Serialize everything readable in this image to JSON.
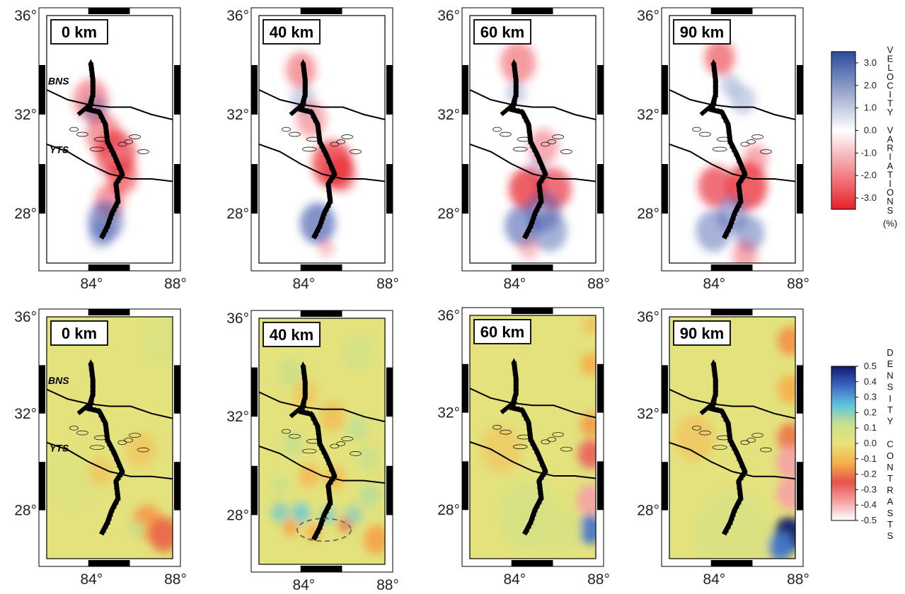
{
  "chart_data": {
    "type": "heatmap",
    "panel_grid": "2 rows x 4 columns of map panels",
    "lon_range": [
      82,
      88
    ],
    "lat_range": [
      26,
      36
    ],
    "xticks": [
      "84°",
      "88°"
    ],
    "yticks": [
      "36°",
      "32°",
      "28°"
    ],
    "fault_labels": [
      "BNS",
      "YTS"
    ],
    "rows": [
      {
        "quantity": "velocity",
        "depths": [
          "0 km",
          "40 km",
          "60 km",
          "90 km"
        ],
        "colorbar": {
          "title_letters": [
            "V",
            "E",
            "L",
            "O",
            "C",
            "I",
            "T",
            "Y",
            " ",
            "V",
            "A",
            "R",
            "I",
            "A",
            "T",
            "I",
            "O",
            "N",
            "S"
          ],
          "unit": "(%)",
          "ticks": [
            "3.0",
            "2.0",
            "1.0",
            "0.0",
            "-1.0",
            "-2.0",
            "-3.0"
          ],
          "range": [
            -3.5,
            3.5
          ],
          "colors": [
            "#2b4a9a",
            "#ffffff",
            "#e8202a"
          ]
        },
        "anomalies": [
          [
            {
              "lon": 84.1,
              "lat": 32.6,
              "sign": "neg",
              "strength": 0.5,
              "r": 0.7
            },
            {
              "lon": 84.3,
              "lat": 32.2,
              "sign": "pos",
              "strength": 0.4,
              "r": 0.5
            },
            {
              "lon": 84.7,
              "lat": 31.2,
              "sign": "neg",
              "strength": 0.5,
              "r": 0.7
            },
            {
              "lon": 85.3,
              "lat": 30.4,
              "sign": "neg",
              "strength": 0.7,
              "r": 0.8
            },
            {
              "lon": 85.6,
              "lat": 29.5,
              "sign": "neg",
              "strength": 0.6,
              "r": 0.6
            },
            {
              "lon": 85.0,
              "lat": 28.5,
              "sign": "neg",
              "strength": 0.5,
              "r": 0.6
            },
            {
              "lon": 84.8,
              "lat": 27.7,
              "sign": "pos",
              "strength": 0.6,
              "r": 0.7
            },
            {
              "lon": 84.6,
              "lat": 27.2,
              "sign": "pos",
              "strength": 0.4,
              "r": 0.5
            }
          ],
          [
            {
              "lon": 84.0,
              "lat": 33.8,
              "sign": "neg",
              "strength": 0.5,
              "r": 0.6
            },
            {
              "lon": 84.1,
              "lat": 32.6,
              "sign": "pos",
              "strength": 0.3,
              "r": 0.5
            },
            {
              "lon": 84.5,
              "lat": 31.8,
              "sign": "neg",
              "strength": 0.4,
              "r": 0.6
            },
            {
              "lon": 85.5,
              "lat": 30.0,
              "sign": "neg",
              "strength": 0.8,
              "r": 0.8
            },
            {
              "lon": 85.9,
              "lat": 29.6,
              "sign": "neg",
              "strength": 0.6,
              "r": 0.6
            },
            {
              "lon": 84.8,
              "lat": 27.6,
              "sign": "pos",
              "strength": 0.7,
              "r": 0.7
            },
            {
              "lon": 85.2,
              "lat": 26.6,
              "sign": "neg",
              "strength": 0.3,
              "r": 0.3
            }
          ],
          [
            {
              "lon": 84.3,
              "lat": 34.1,
              "sign": "neg",
              "strength": 0.5,
              "r": 0.7
            },
            {
              "lon": 84.2,
              "lat": 32.9,
              "sign": "pos",
              "strength": 0.3,
              "r": 0.4
            },
            {
              "lon": 85.5,
              "lat": 30.7,
              "sign": "neg",
              "strength": 0.4,
              "r": 0.6
            },
            {
              "lon": 85.2,
              "lat": 29.8,
              "sign": "pos",
              "strength": 0.3,
              "r": 0.4
            },
            {
              "lon": 84.7,
              "lat": 29.0,
              "sign": "neg",
              "strength": 0.8,
              "r": 0.7
            },
            {
              "lon": 86.0,
              "lat": 29.0,
              "sign": "neg",
              "strength": 0.7,
              "r": 0.7
            },
            {
              "lon": 85.5,
              "lat": 28.1,
              "sign": "pos",
              "strength": 0.5,
              "r": 0.7
            },
            {
              "lon": 84.5,
              "lat": 27.5,
              "sign": "pos",
              "strength": 0.6,
              "r": 0.7
            },
            {
              "lon": 85.8,
              "lat": 27.3,
              "sign": "pos",
              "strength": 0.5,
              "r": 0.7
            },
            {
              "lon": 84.8,
              "lat": 26.6,
              "sign": "neg",
              "strength": 0.3,
              "r": 0.4
            }
          ],
          [
            {
              "lon": 84.4,
              "lat": 34.3,
              "sign": "neg",
              "strength": 0.6,
              "r": 0.6
            },
            {
              "lon": 84.9,
              "lat": 33.2,
              "sign": "pos",
              "strength": 0.3,
              "r": 0.4
            },
            {
              "lon": 85.5,
              "lat": 32.6,
              "sign": "pos",
              "strength": 0.3,
              "r": 0.5
            },
            {
              "lon": 86.1,
              "lat": 30.2,
              "sign": "neg",
              "strength": 0.4,
              "r": 0.5
            },
            {
              "lon": 84.2,
              "lat": 29.1,
              "sign": "neg",
              "strength": 0.7,
              "r": 0.7
            },
            {
              "lon": 85.7,
              "lat": 29.1,
              "sign": "neg",
              "strength": 0.8,
              "r": 0.8
            },
            {
              "lon": 85.0,
              "lat": 28.0,
              "sign": "pos",
              "strength": 0.5,
              "r": 0.6
            },
            {
              "lon": 84.1,
              "lat": 27.3,
              "sign": "pos",
              "strength": 0.5,
              "r": 0.7
            },
            {
              "lon": 85.8,
              "lat": 27.2,
              "sign": "pos",
              "strength": 0.5,
              "r": 0.6
            },
            {
              "lon": 85.6,
              "lat": 26.3,
              "sign": "neg",
              "strength": 0.4,
              "r": 0.5
            }
          ]
        ]
      },
      {
        "quantity": "density",
        "depths": [
          "0 km",
          "40 km",
          "60 km",
          "90 km"
        ],
        "colorbar": {
          "title_letters": [
            "D",
            "E",
            "N",
            "S",
            "I",
            "T",
            "Y",
            " ",
            "C",
            "O",
            "N",
            "T",
            "R",
            "A",
            "S",
            "T",
            "S"
          ],
          "ticks": [
            "0.5",
            "0.4",
            "0.3",
            "0.2",
            "0.1",
            "0.0",
            "-0.1",
            "-0.2",
            "-0.3",
            "-0.4",
            "-0.5"
          ],
          "range": [
            -0.5,
            0.5
          ],
          "colors": [
            "#ffffff",
            "#f5a0a0",
            "#e6534a",
            "#f6b04a",
            "#e8e27a",
            "#c8e08c",
            "#5fc3e0",
            "#3c66c4",
            "#101a6a"
          ]
        },
        "anomalies": [
          [
            {
              "lon": 86.8,
              "lat": 27.5,
              "value": -0.15,
              "r": 0.6
            },
            {
              "lon": 87.6,
              "lat": 27.0,
              "value": -0.22,
              "r": 0.6
            },
            {
              "lon": 86.3,
              "lat": 27.2,
              "value": 0.12,
              "r": 0.3
            },
            {
              "lon": 87.5,
              "lat": 35.0,
              "value": 0.05,
              "r": 0.8
            },
            {
              "lon": 83.3,
              "lat": 29.2,
              "value": 0.04,
              "r": 1.0
            },
            {
              "lon": 86.5,
              "lat": 30.5,
              "value": -0.06,
              "r": 0.6
            },
            {
              "lon": 84.6,
              "lat": 29.6,
              "value": -0.06,
              "r": 0.5
            }
          ],
          [
            {
              "lon": 83.0,
              "lat": 28.1,
              "value": 0.2,
              "r": 0.35
            },
            {
              "lon": 84.0,
              "lat": 28.1,
              "value": 0.22,
              "r": 0.35
            },
            {
              "lon": 85.3,
              "lat": 28.0,
              "value": 0.2,
              "r": 0.3
            },
            {
              "lon": 86.5,
              "lat": 28.0,
              "value": 0.18,
              "r": 0.35
            },
            {
              "lon": 86.1,
              "lat": 27.6,
              "value": -0.2,
              "r": 0.25
            },
            {
              "lon": 83.5,
              "lat": 27.5,
              "value": -0.14,
              "r": 0.3
            },
            {
              "lon": 84.6,
              "lat": 27.3,
              "value": -0.12,
              "r": 0.3
            },
            {
              "lon": 87.6,
              "lat": 27.0,
              "value": -0.14,
              "r": 0.5
            },
            {
              "lon": 84.4,
              "lat": 29.6,
              "value": -0.1,
              "r": 0.4
            },
            {
              "lon": 85.6,
              "lat": 29.5,
              "value": -0.1,
              "r": 0.4
            },
            {
              "lon": 83.6,
              "lat": 30.9,
              "value": 0.12,
              "r": 0.4
            },
            {
              "lon": 86.7,
              "lat": 31.5,
              "value": 0.13,
              "r": 0.4
            },
            {
              "lon": 87.2,
              "lat": 30.3,
              "value": 0.12,
              "r": 0.4
            },
            {
              "lon": 83.5,
              "lat": 33.8,
              "value": 0.1,
              "r": 0.5
            },
            {
              "lon": 86.7,
              "lat": 34.6,
              "value": 0.08,
              "r": 0.6
            },
            {
              "lon": 85.5,
              "lat": 32.0,
              "value": -0.08,
              "r": 0.5
            },
            {
              "lon": 84.2,
              "lat": 32.9,
              "value": -0.06,
              "r": 0.5
            },
            {
              "lon": 83.0,
              "lat": 29.2,
              "value": 0.12,
              "r": 0.3
            },
            {
              "lon": 87.3,
              "lat": 28.8,
              "value": 0.14,
              "r": 0.4
            }
          ],
          [
            {
              "lon": 87.75,
              "lat": 31.5,
              "value": -0.15,
              "r": 0.4
            },
            {
              "lon": 87.75,
              "lat": 30.3,
              "value": -0.28,
              "r": 0.5
            },
            {
              "lon": 87.75,
              "lat": 28.4,
              "value": -0.38,
              "r": 0.55
            },
            {
              "lon": 87.75,
              "lat": 27.2,
              "value": 0.35,
              "r": 0.5
            },
            {
              "lon": 87.75,
              "lat": 34.0,
              "value": -0.12,
              "r": 0.4
            },
            {
              "lon": 87.75,
              "lat": 35.6,
              "value": -0.08,
              "r": 0.3
            },
            {
              "lon": 84.8,
              "lat": 27.8,
              "value": 0.07,
              "r": 1.2
            },
            {
              "lon": 86.5,
              "lat": 27.2,
              "value": 0.06,
              "r": 0.7
            },
            {
              "lon": 83.5,
              "lat": 30.5,
              "value": -0.05,
              "r": 0.8
            }
          ],
          [
            {
              "lon": 87.75,
              "lat": 35.0,
              "value": -0.16,
              "r": 0.5
            },
            {
              "lon": 87.75,
              "lat": 33.0,
              "value": -0.12,
              "r": 0.5
            },
            {
              "lon": 87.75,
              "lat": 31.0,
              "value": -0.2,
              "r": 0.5
            },
            {
              "lon": 87.75,
              "lat": 30.0,
              "value": -0.38,
              "r": 0.55
            },
            {
              "lon": 87.75,
              "lat": 28.7,
              "value": -0.38,
              "r": 0.55
            },
            {
              "lon": 87.7,
              "lat": 27.0,
              "value": 0.5,
              "r": 0.6
            },
            {
              "lon": 87.3,
              "lat": 26.5,
              "value": 0.35,
              "r": 0.5
            },
            {
              "lon": 85.0,
              "lat": 27.0,
              "value": 0.06,
              "r": 1.5
            },
            {
              "lon": 83.2,
              "lat": 31.0,
              "value": -0.06,
              "r": 0.8
            }
          ]
        ]
      }
    ]
  }
}
